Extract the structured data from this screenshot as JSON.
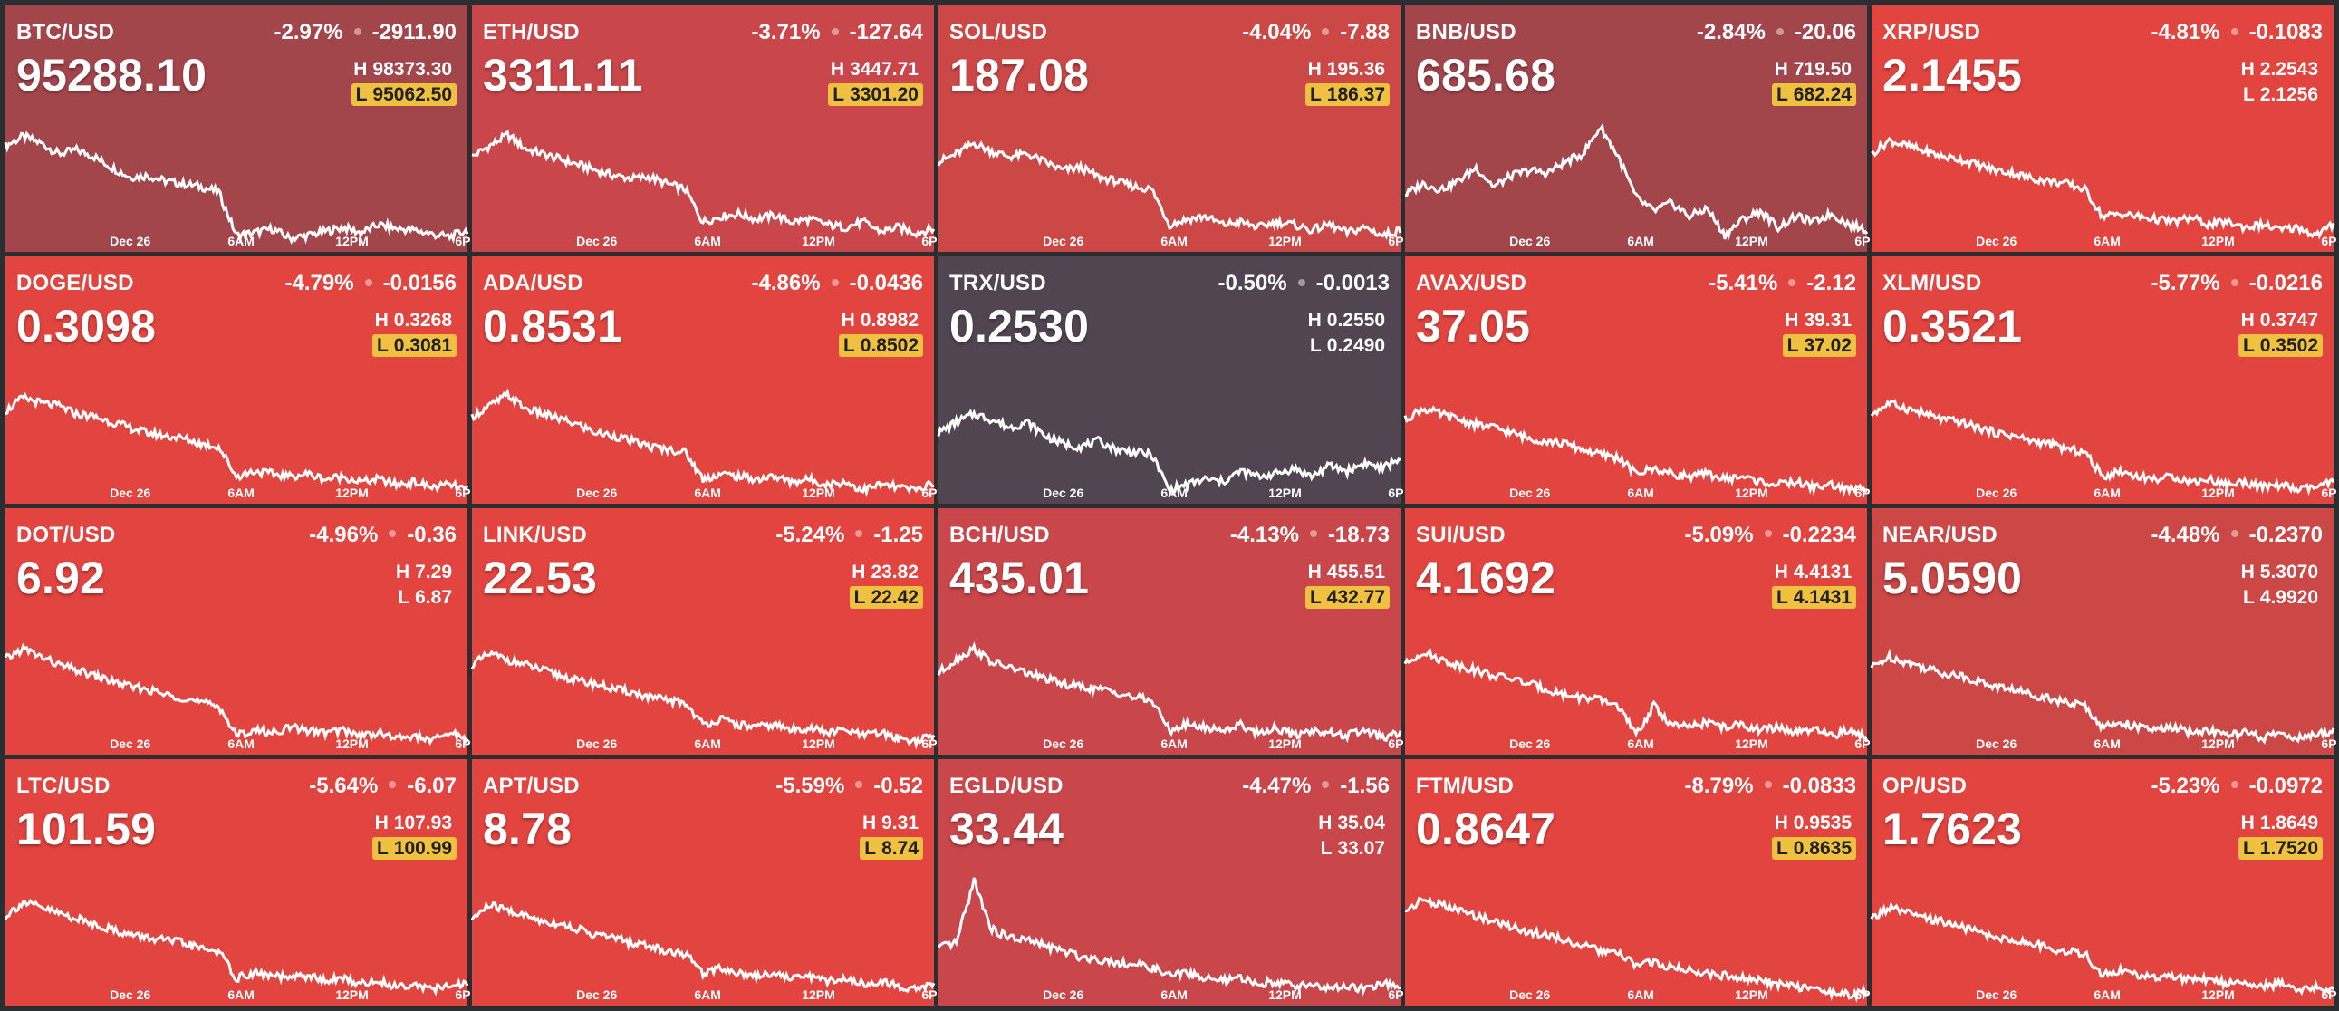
{
  "time_labels": [
    "Dec 26",
    "6AM",
    "12PM",
    "6P"
  ],
  "colors": {
    "red": "#e24540",
    "muted_red": "#c9474a",
    "dark_red": "#a2464c",
    "purple": "#524552",
    "low_flag": "#f0c040"
  },
  "tiles": [
    {
      "id": "btc",
      "symbol": "BTC/USD",
      "price": "95288.10",
      "change_pct": "-2.97%",
      "change_abs": "-2911.90",
      "high": "H",
      "high_value": "98373.30",
      "low": "L",
      "low_value": "95062.50",
      "low_flag": true,
      "bg": "#a2464c",
      "series": [
        0.78,
        0.85,
        0.8,
        0.72,
        0.75,
        0.7,
        0.62,
        0.55,
        0.56,
        0.52,
        0.5,
        0.48,
        0.44,
        0.12,
        0.14,
        0.17,
        0.1,
        0.12,
        0.15,
        0.18,
        0.14,
        0.2,
        0.17,
        0.16,
        0.13,
        0.11,
        0.16
      ]
    },
    {
      "id": "eth",
      "symbol": "ETH/USD",
      "price": "3311.11",
      "change_pct": "-3.71%",
      "change_abs": "-127.64",
      "high": "H",
      "high_value": "3447.71",
      "low": "L",
      "low_value": "3301.20",
      "low_flag": true,
      "bg": "#c9474a",
      "series": [
        0.7,
        0.78,
        0.86,
        0.76,
        0.72,
        0.68,
        0.64,
        0.6,
        0.56,
        0.54,
        0.55,
        0.5,
        0.46,
        0.22,
        0.26,
        0.28,
        0.24,
        0.27,
        0.22,
        0.24,
        0.2,
        0.18,
        0.22,
        0.15,
        0.18,
        0.14,
        0.17
      ]
    },
    {
      "id": "sol",
      "symbol": "SOL/USD",
      "price": "187.08",
      "change_pct": "-4.04%",
      "change_abs": "-7.88",
      "high": "H",
      "high_value": "195.36",
      "low": "L",
      "low_value": "186.37",
      "low_flag": true,
      "bg": "#cb4847",
      "series": [
        0.66,
        0.72,
        0.8,
        0.74,
        0.7,
        0.72,
        0.66,
        0.6,
        0.62,
        0.55,
        0.52,
        0.48,
        0.46,
        0.2,
        0.24,
        0.26,
        0.2,
        0.22,
        0.18,
        0.22,
        0.2,
        0.16,
        0.2,
        0.14,
        0.18,
        0.12,
        0.16
      ]
    },
    {
      "id": "bnb",
      "symbol": "BNB/USD",
      "price": "685.68",
      "change_pct": "-2.84%",
      "change_abs": "-20.06",
      "high": "H",
      "high_value": "719.50",
      "low": "L",
      "low_value": "682.24",
      "low_flag": true,
      "bg": "#a2464c",
      "series": [
        0.42,
        0.5,
        0.46,
        0.52,
        0.62,
        0.48,
        0.56,
        0.6,
        0.58,
        0.66,
        0.72,
        0.92,
        0.7,
        0.4,
        0.3,
        0.36,
        0.26,
        0.32,
        0.12,
        0.24,
        0.3,
        0.18,
        0.26,
        0.22,
        0.28,
        0.2,
        0.16
      ]
    },
    {
      "id": "xrp",
      "symbol": "XRP/USD",
      "price": "2.1455",
      "change_pct": "-4.81%",
      "change_abs": "-0.1083",
      "high": "H",
      "high_value": "2.2543",
      "low": "L",
      "low_value": "2.1256",
      "low_flag": false,
      "bg": "#e24540",
      "series": [
        0.72,
        0.82,
        0.78,
        0.74,
        0.7,
        0.68,
        0.64,
        0.6,
        0.58,
        0.54,
        0.52,
        0.5,
        0.46,
        0.26,
        0.28,
        0.26,
        0.24,
        0.22,
        0.25,
        0.2,
        0.22,
        0.18,
        0.2,
        0.16,
        0.18,
        0.12,
        0.2
      ]
    },
    {
      "id": "doge",
      "symbol": "DOGE/USD",
      "price": "0.3098",
      "change_pct": "-4.79%",
      "change_abs": "-0.0156",
      "high": "H",
      "high_value": "0.3268",
      "low": "L",
      "low_value": "0.3081",
      "low_flag": true,
      "bg": "#e24540",
      "series": [
        0.68,
        0.78,
        0.74,
        0.72,
        0.66,
        0.64,
        0.6,
        0.56,
        0.52,
        0.5,
        0.48,
        0.44,
        0.42,
        0.2,
        0.24,
        0.22,
        0.2,
        0.22,
        0.18,
        0.2,
        0.16,
        0.18,
        0.14,
        0.16,
        0.12,
        0.14,
        0.1
      ]
    },
    {
      "id": "ada",
      "symbol": "ADA/USD",
      "price": "0.8531",
      "change_pct": "-4.86%",
      "change_abs": "-0.0436",
      "high": "H",
      "high_value": "0.8982",
      "low": "L",
      "low_value": "0.8502",
      "low_flag": true,
      "bg": "#e24540",
      "series": [
        0.64,
        0.72,
        0.8,
        0.7,
        0.66,
        0.62,
        0.58,
        0.52,
        0.5,
        0.46,
        0.42,
        0.4,
        0.38,
        0.18,
        0.22,
        0.2,
        0.18,
        0.2,
        0.16,
        0.18,
        0.14,
        0.16,
        0.1,
        0.14,
        0.12,
        0.1,
        0.16
      ]
    },
    {
      "id": "trx",
      "symbol": "TRX/USD",
      "price": "0.2530",
      "change_pct": "-0.50%",
      "change_abs": "-0.0013",
      "high": "H",
      "high_value": "0.2550",
      "low": "L",
      "low_value": "0.2490",
      "low_flag": false,
      "bg": "#524552",
      "series": [
        0.52,
        0.6,
        0.66,
        0.62,
        0.56,
        0.6,
        0.5,
        0.44,
        0.42,
        0.46,
        0.4,
        0.38,
        0.36,
        0.1,
        0.14,
        0.18,
        0.16,
        0.24,
        0.2,
        0.22,
        0.26,
        0.2,
        0.28,
        0.24,
        0.3,
        0.26,
        0.34
      ]
    },
    {
      "id": "avax",
      "symbol": "AVAX/USD",
      "price": "37.05",
      "change_pct": "-5.41%",
      "change_abs": "-2.12",
      "high": "H",
      "high_value": "39.31",
      "low": "L",
      "low_value": "37.02",
      "low_flag": true,
      "bg": "#e24540",
      "series": [
        0.62,
        0.7,
        0.66,
        0.62,
        0.58,
        0.56,
        0.52,
        0.48,
        0.46,
        0.44,
        0.4,
        0.36,
        0.34,
        0.22,
        0.26,
        0.22,
        0.2,
        0.22,
        0.18,
        0.2,
        0.16,
        0.14,
        0.16,
        0.12,
        0.14,
        0.1,
        0.12
      ]
    },
    {
      "id": "xlm",
      "symbol": "XLM/USD",
      "price": "0.3521",
      "change_pct": "-5.77%",
      "change_abs": "-0.0216",
      "high": "H",
      "high_value": "0.3747",
      "low": "L",
      "low_value": "0.3502",
      "low_flag": true,
      "bg": "#e24540",
      "series": [
        0.66,
        0.74,
        0.7,
        0.66,
        0.62,
        0.6,
        0.56,
        0.52,
        0.5,
        0.46,
        0.44,
        0.4,
        0.38,
        0.2,
        0.24,
        0.2,
        0.18,
        0.2,
        0.16,
        0.18,
        0.14,
        0.16,
        0.12,
        0.14,
        0.1,
        0.12,
        0.16
      ]
    },
    {
      "id": "dot",
      "symbol": "DOT/USD",
      "price": "6.92",
      "change_pct": "-4.96%",
      "change_abs": "-0.36",
      "high": "H",
      "high_value": "7.29",
      "low": "L",
      "low_value": "6.87",
      "low_flag": false,
      "bg": "#e24540",
      "series": [
        0.7,
        0.78,
        0.72,
        0.66,
        0.62,
        0.58,
        0.54,
        0.5,
        0.48,
        0.44,
        0.42,
        0.38,
        0.36,
        0.14,
        0.18,
        0.16,
        0.2,
        0.18,
        0.16,
        0.18,
        0.14,
        0.16,
        0.12,
        0.14,
        0.1,
        0.16,
        0.12
      ]
    },
    {
      "id": "link",
      "symbol": "LINK/USD",
      "price": "22.53",
      "change_pct": "-5.24%",
      "change_abs": "-1.25",
      "high": "H",
      "high_value": "23.82",
      "low": "L",
      "low_value": "22.42",
      "low_flag": true,
      "bg": "#e24540",
      "series": [
        0.66,
        0.74,
        0.7,
        0.66,
        0.62,
        0.58,
        0.54,
        0.52,
        0.48,
        0.46,
        0.42,
        0.4,
        0.38,
        0.22,
        0.26,
        0.22,
        0.2,
        0.22,
        0.18,
        0.2,
        0.16,
        0.18,
        0.14,
        0.16,
        0.12,
        0.1,
        0.14
      ]
    },
    {
      "id": "bch",
      "symbol": "BCH/USD",
      "price": "435.01",
      "change_pct": "-4.13%",
      "change_abs": "-18.73",
      "high": "H",
      "high_value": "455.51",
      "low": "L",
      "low_value": "432.77",
      "low_flag": true,
      "bg": "#c9474a",
      "series": [
        0.6,
        0.7,
        0.78,
        0.68,
        0.64,
        0.6,
        0.56,
        0.52,
        0.5,
        0.48,
        0.46,
        0.42,
        0.4,
        0.18,
        0.22,
        0.2,
        0.18,
        0.22,
        0.16,
        0.2,
        0.14,
        0.18,
        0.16,
        0.14,
        0.18,
        0.12,
        0.16
      ]
    },
    {
      "id": "sui",
      "symbol": "SUI/USD",
      "price": "4.1692",
      "change_pct": "-5.09%",
      "change_abs": "-0.2234",
      "high": "H",
      "high_value": "4.4131",
      "low": "L",
      "low_value": "4.1431",
      "low_flag": true,
      "bg": "#e24540",
      "series": [
        0.66,
        0.76,
        0.7,
        0.66,
        0.62,
        0.58,
        0.56,
        0.52,
        0.48,
        0.44,
        0.42,
        0.4,
        0.36,
        0.14,
        0.36,
        0.22,
        0.2,
        0.24,
        0.2,
        0.22,
        0.18,
        0.2,
        0.16,
        0.18,
        0.14,
        0.18,
        0.12
      ]
    },
    {
      "id": "near",
      "symbol": "NEAR/USD",
      "price": "5.0590",
      "change_pct": "-4.48%",
      "change_abs": "-0.2370",
      "high": "H",
      "high_value": "5.3070",
      "low": "L",
      "low_value": "4.9920",
      "low_flag": false,
      "bg": "#cb4847",
      "series": [
        0.64,
        0.72,
        0.68,
        0.64,
        0.6,
        0.58,
        0.54,
        0.5,
        0.48,
        0.44,
        0.42,
        0.38,
        0.36,
        0.2,
        0.24,
        0.2,
        0.18,
        0.2,
        0.16,
        0.18,
        0.14,
        0.16,
        0.12,
        0.16,
        0.12,
        0.14,
        0.18
      ]
    },
    {
      "id": "ltc",
      "symbol": "LTC/USD",
      "price": "101.59",
      "change_pct": "-5.64%",
      "change_abs": "-6.07",
      "high": "H",
      "high_value": "107.93",
      "low": "L",
      "low_value": "100.99",
      "low_flag": true,
      "bg": "#e24540",
      "series": [
        0.66,
        0.76,
        0.72,
        0.68,
        0.64,
        0.6,
        0.56,
        0.52,
        0.5,
        0.48,
        0.46,
        0.42,
        0.4,
        0.2,
        0.24,
        0.22,
        0.2,
        0.22,
        0.18,
        0.2,
        0.16,
        0.18,
        0.14,
        0.16,
        0.12,
        0.14,
        0.16
      ]
    },
    {
      "id": "apt",
      "symbol": "APT/USD",
      "price": "8.78",
      "change_pct": "-5.59%",
      "change_abs": "-0.52",
      "high": "H",
      "high_value": "9.31",
      "low": "L",
      "low_value": "8.74",
      "low_flag": true,
      "bg": "#e24540",
      "series": [
        0.64,
        0.74,
        0.7,
        0.66,
        0.62,
        0.6,
        0.56,
        0.52,
        0.5,
        0.46,
        0.44,
        0.4,
        0.38,
        0.24,
        0.28,
        0.24,
        0.22,
        0.24,
        0.2,
        0.22,
        0.18,
        0.2,
        0.16,
        0.18,
        0.14,
        0.12,
        0.16
      ]
    },
    {
      "id": "egld",
      "symbol": "EGLD/USD",
      "price": "33.44",
      "change_pct": "-4.47%",
      "change_abs": "-1.56",
      "high": "H",
      "high_value": "35.04",
      "low": "L",
      "low_value": "33.07",
      "low_flag": false,
      "bg": "#c9474a",
      "series": [
        0.42,
        0.46,
        0.92,
        0.56,
        0.5,
        0.48,
        0.44,
        0.4,
        0.36,
        0.34,
        0.32,
        0.3,
        0.28,
        0.22,
        0.24,
        0.2,
        0.18,
        0.2,
        0.16,
        0.18,
        0.14,
        0.16,
        0.12,
        0.14,
        0.12,
        0.16,
        0.14
      ]
    },
    {
      "id": "ftm",
      "symbol": "FTM/USD",
      "price": "0.8647",
      "change_pct": "-8.79%",
      "change_abs": "-0.0833",
      "high": "H",
      "high_value": "0.9535",
      "low": "L",
      "low_value": "0.8635",
      "low_flag": true,
      "bg": "#e24540",
      "series": [
        0.7,
        0.78,
        0.74,
        0.7,
        0.66,
        0.62,
        0.58,
        0.54,
        0.52,
        0.48,
        0.44,
        0.4,
        0.38,
        0.3,
        0.32,
        0.28,
        0.26,
        0.24,
        0.22,
        0.2,
        0.18,
        0.16,
        0.14,
        0.12,
        0.1,
        0.08,
        0.1
      ]
    },
    {
      "id": "op",
      "symbol": "OP/USD",
      "price": "1.7623",
      "change_pct": "-5.23%",
      "change_abs": "-0.0972",
      "high": "H",
      "high_value": "1.8649",
      "low": "L",
      "low_value": "1.7520",
      "low_flag": true,
      "bg": "#e24540",
      "series": [
        0.64,
        0.72,
        0.68,
        0.64,
        0.62,
        0.58,
        0.54,
        0.5,
        0.48,
        0.46,
        0.42,
        0.4,
        0.38,
        0.22,
        0.26,
        0.22,
        0.2,
        0.22,
        0.18,
        0.2,
        0.16,
        0.18,
        0.14,
        0.16,
        0.12,
        0.14,
        0.1
      ]
    }
  ]
}
